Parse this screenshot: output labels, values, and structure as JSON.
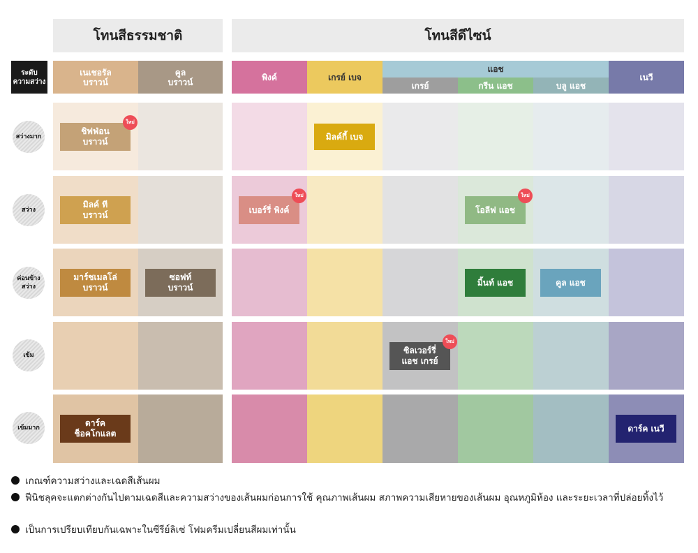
{
  "groups": {
    "natural": "โทนสีธรรมชาติ",
    "design": "โทนสีดีไซน์"
  },
  "level_header": "ระดับ\nความสว่าง",
  "columns": {
    "natural_brown": "เนเชอรัล\nบราวน์",
    "cool_brown": "คูล\nบราวน์",
    "pink": "พิงค์",
    "greige": "เกรย์ เบจ",
    "ash": "แอช",
    "ash_grey": "เกรย์",
    "ash_green": "กรีน แอช",
    "ash_blue": "บลู แอช",
    "navy": "เนวี"
  },
  "levels": [
    "สว่างมาก",
    "สว่าง",
    "ค่อนข้าง\nสว่าง",
    "เข้ม",
    "เข้มมาก"
  ],
  "badge_text": "ใหม่",
  "products": {
    "chiffon_brown": "ชิฟฟ่อน\nบราวน์",
    "milky_beige": "มิลค์กี้ เบจ",
    "milk_tea_brown": "มิลค์ ที\nบราวน์",
    "berry_pink": "เบอร์รี่ พิงค์",
    "olive_ash": "โอลีฟ แอช",
    "marshmallow_brown": "มาร์ชเมลโล่\nบราวน์",
    "soft_brown": "ซอฟท์\nบราวน์",
    "mint_ash": "มิ้นท์ แอช",
    "blue_ash": "คูล แอช",
    "silver_ash_grey": "ซิลเวอร์รี่\nแอช เกรย์",
    "dark_chocolate": "ดาร์ค\nช็อคโกแลต",
    "dark_navy": "ดาร์ค เนวี"
  },
  "notes": [
    "เกณฑ์ความสว่างและเฉดสีเส้นผม",
    "ฟีนิชลุคจะแตกต่างกันไปตามเฉดสีและความสว่างของเส้นผมก่อนการใช้ คุณภาพเส้นผม สภาพความเสียหายของเส้นผม อุณหภูมิห้อง และระยะเวลาที่ปล่อยทิ้งไว้",
    "เป็นการเปรียบเทียบกันเฉพาะในซีรีย์ลิเซ่ โฟมครีมเปลี่ยนสีผมเท่านั้น"
  ],
  "colors": {
    "natural_brown": "#d9b48c",
    "cool_brown": "#a89886",
    "pink": "#d5729d",
    "greige": "#ecc95e",
    "ash": "#a6cad6",
    "ash_grey": "#9e9e9e",
    "ash_green": "#8cbf8a",
    "ash_blue": "#93b4b7",
    "navy": "#777aa9"
  }
}
